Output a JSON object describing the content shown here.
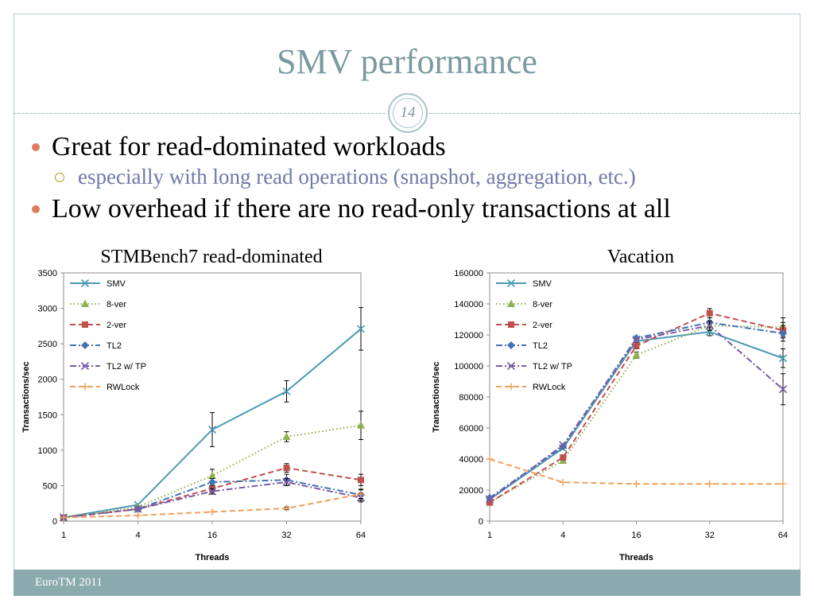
{
  "slide": {
    "title": "SMV performance",
    "number": "14",
    "bullets": [
      {
        "level": 1,
        "text": "Great for read-dominated workloads"
      },
      {
        "level": 2,
        "text": "especially with long read operations (snapshot, aggregation, etc.)"
      },
      {
        "level": 1,
        "text": "Low overhead if there are no read-only transactions at all"
      }
    ],
    "footer": "EuroTM 2011"
  },
  "chart_data": [
    {
      "type": "line",
      "title": "STMBench7 read-dominated",
      "xlabel": "Threads",
      "ylabel": "Transactions/sec",
      "x": [
        1,
        4,
        16,
        32,
        64
      ],
      "ylim": [
        0,
        3500
      ],
      "yticks": [
        0,
        500,
        1000,
        1500,
        2000,
        2500,
        3000,
        3500
      ],
      "grid": false,
      "legend": "top-left",
      "series": [
        {
          "name": "SMV",
          "values": [
            50,
            230,
            1290,
            1830,
            2710
          ],
          "errors": [
            0,
            0,
            240,
            150,
            300
          ],
          "color": "#4a9bb5",
          "dash": "solid",
          "marker": "x"
        },
        {
          "name": "8-ver",
          "values": [
            50,
            200,
            640,
            1190,
            1350
          ],
          "errors": [
            0,
            0,
            90,
            70,
            200
          ],
          "color": "#8fb04e",
          "dash": "dotted",
          "marker": "triangle"
        },
        {
          "name": "2-ver",
          "values": [
            50,
            170,
            460,
            750,
            580
          ],
          "errors": [
            0,
            0,
            60,
            60,
            80
          ],
          "color": "#c0504d",
          "dash": "dashed",
          "marker": "square"
        },
        {
          "name": "TL2",
          "values": [
            50,
            170,
            550,
            580,
            370
          ],
          "errors": [
            0,
            0,
            50,
            80,
            80
          ],
          "color": "#4473b0",
          "dash": "dashdot",
          "marker": "diamond"
        },
        {
          "name": "TL2 w/ TP",
          "values": [
            50,
            170,
            420,
            550,
            330
          ],
          "errors": [
            0,
            0,
            40,
            50,
            60
          ],
          "color": "#7a5ba3",
          "dash": "dashdot",
          "marker": "x"
        },
        {
          "name": "RWLock",
          "values": [
            50,
            80,
            130,
            180,
            380
          ],
          "errors": [
            0,
            0,
            0,
            20,
            60
          ],
          "color": "#f0a05a",
          "dash": "dashed",
          "marker": "plus"
        }
      ]
    },
    {
      "type": "line",
      "title": "Vacation",
      "xlabel": "Threads",
      "ylabel": "Transactions/sec",
      "x": [
        1,
        4,
        16,
        32,
        64
      ],
      "ylim": [
        0,
        160000
      ],
      "yticks": [
        0,
        20000,
        40000,
        60000,
        80000,
        100000,
        120000,
        140000,
        160000
      ],
      "grid": false,
      "legend": "top-left",
      "series": [
        {
          "name": "SMV",
          "values": [
            14000,
            47000,
            116000,
            122000,
            105000
          ],
          "errors": [
            0,
            0,
            0,
            2500,
            6000
          ],
          "color": "#4a9bb5",
          "dash": "solid",
          "marker": "x"
        },
        {
          "name": "8-ver",
          "values": [
            12000,
            39000,
            107000,
            126000,
            125000
          ],
          "errors": [
            0,
            0,
            2000,
            3000,
            6000
          ],
          "color": "#8fb04e",
          "dash": "dotted",
          "marker": "triangle"
        },
        {
          "name": "2-ver",
          "values": [
            12000,
            41000,
            113000,
            134000,
            123000
          ],
          "errors": [
            0,
            0,
            2000,
            3000,
            5000
          ],
          "color": "#c0504d",
          "dash": "dashed",
          "marker": "square"
        },
        {
          "name": "TL2",
          "values": [
            15000,
            48000,
            118000,
            128000,
            121000
          ],
          "errors": [
            0,
            0,
            0,
            3000,
            5000
          ],
          "color": "#4473b0",
          "dash": "dashdot",
          "marker": "diamond"
        },
        {
          "name": "TL2 w/ TP",
          "values": [
            14000,
            49000,
            117000,
            126000,
            85000
          ],
          "errors": [
            0,
            0,
            0,
            3000,
            10000
          ],
          "color": "#7a5ba3",
          "dash": "dashdot",
          "marker": "x"
        },
        {
          "name": "RWLock",
          "values": [
            40000,
            25000,
            24000,
            24000,
            24000
          ],
          "errors": [
            0,
            0,
            0,
            0,
            0
          ],
          "color": "#f0a05a",
          "dash": "dashed",
          "marker": "plus"
        }
      ]
    }
  ]
}
